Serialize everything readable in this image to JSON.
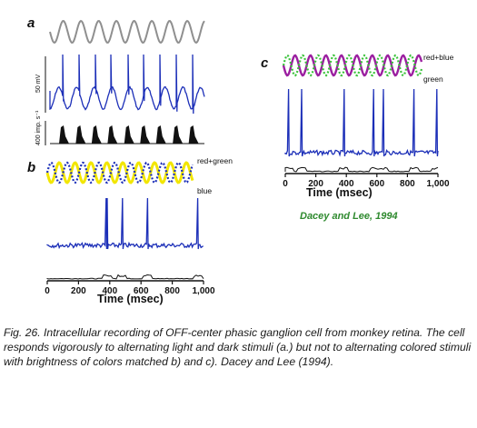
{
  "panels": [
    {
      "letter": "a",
      "stimulus_label": "",
      "voltage_scale": "50 mV",
      "rate_scale": "400 imp. s⁻¹"
    },
    {
      "letter": "b",
      "stimulus_labels": [
        "red+green",
        "blue"
      ],
      "x_ticks": [
        "0",
        "200",
        "400",
        "600",
        "800",
        "1,000"
      ],
      "x_title": "Time (msec)"
    },
    {
      "letter": "c",
      "stimulus_labels": [
        "red+blue",
        "green"
      ],
      "x_ticks": [
        "0",
        "200",
        "400",
        "600",
        "800",
        "1,000"
      ],
      "x_title": "Time (msec)"
    }
  ],
  "credit": "Dacey and Lee, 1994",
  "caption": "Fig. 26. Intracellular recording of OFF-center phasic ganglion cell from monkey retina. The cell responds vigorously to alternating light and dark stimuli (a.) but not to alternating colored stimuli with brightness of colors matched b) and c). Dacey and Lee (1994).",
  "colors": {
    "trace": "#1c2fb8",
    "stimulus_gray": "#8f8f8f",
    "yellow": "#f2e600",
    "blue_dots": "#1c2fb8",
    "magenta": "#9b1fa0",
    "green_dots": "#39c239",
    "credit": "#2f8a2f"
  },
  "chart_data": [
    {
      "type": "line",
      "panel": "a",
      "series": [
        {
          "values_description_free": true,
          "spike_times_msec": [
            40,
            145,
            245,
            345,
            450,
            550,
            650,
            755,
            855
          ]
        }
      ]
    },
    {
      "type": "line",
      "panel": "b",
      "x": {
        "range": [
          0,
          1000
        ],
        "ticks": [
          0,
          200,
          400,
          600,
          800,
          1000
        ]
      },
      "series": [
        {
          "spike_times_msec": [
            380,
            480,
            640,
            960
          ]
        }
      ]
    },
    {
      "type": "line",
      "panel": "c",
      "x": {
        "range": [
          0,
          1000
        ],
        "ticks": [
          0,
          200,
          400,
          600,
          800,
          1000
        ]
      },
      "series": [
        {
          "spike_times_msec": [
            20,
            110,
            385,
            580,
            640,
            840,
            990
          ]
        }
      ]
    }
  ]
}
